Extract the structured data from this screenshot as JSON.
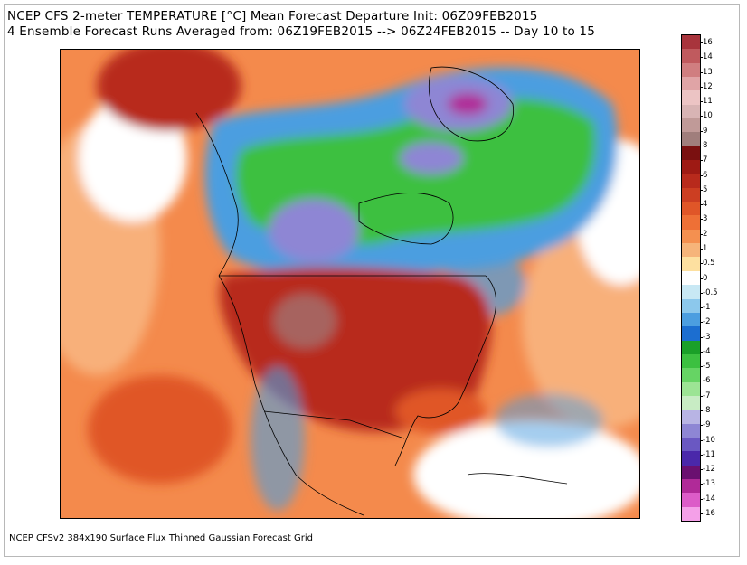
{
  "header": {
    "line1": "NCEP CFS 2-meter TEMPERATURE [°C] Mean Forecast Departure Init: 06Z09FEB2015",
    "line2": "4 Ensemble Forecast Runs Averaged from: 06Z19FEB2015 --> 06Z24FEB2015 -- Day 10 to 15"
  },
  "footer": {
    "text": "NCEP CFSv2 384x190 Surface Flux Thinned Gaussian Forecast Grid"
  },
  "colorbar": {
    "labels": [
      "16",
      "14",
      "13",
      "12",
      "11",
      "10",
      "9",
      "8",
      "7",
      "6",
      "5",
      "4",
      "3",
      "2",
      "1",
      "0.5",
      "0",
      "-0.5",
      "-1",
      "-2",
      "-3",
      "-4",
      "-5",
      "-6",
      "-7",
      "-8",
      "-9",
      "-10",
      "-11",
      "-12",
      "-13",
      "-14",
      "-16"
    ],
    "colors": [
      "#a8343c",
      "#c05a5e",
      "#d07e80",
      "#e0a4a6",
      "#ecc4c4",
      "#d8b4b4",
      "#c09a98",
      "#a07e7c",
      "#7a1010",
      "#9e1a14",
      "#b82a1c",
      "#cc3e22",
      "#e05628",
      "#ee7036",
      "#f49050",
      "#f6b47a",
      "#fde0a0",
      "#ffffff",
      "#c8e8f4",
      "#8cc8ec",
      "#4c9ee0",
      "#1c6ed0",
      "#1aa028",
      "#3cc040",
      "#66d464",
      "#9ce494",
      "#c8ecc4",
      "#b8b4e4",
      "#8e86d4",
      "#6a58c2",
      "#4a28aa",
      "#6a1070",
      "#b02a98",
      "#dc5cc8",
      "#f4a0e8"
    ],
    "color_names": [
      "dark-red",
      "rose",
      "pink",
      "light-pink",
      "blush",
      "mauve",
      "dusty-rose",
      "taupe",
      "maroon",
      "crimson",
      "brick",
      "red",
      "red-orange",
      "orange-red",
      "orange",
      "light-orange",
      "pale-yellow",
      "white",
      "pale-blue",
      "light-blue",
      "medium-blue",
      "blue",
      "dark-green",
      "green",
      "light-green",
      "pale-green",
      "mint",
      "lavender",
      "periwinkle",
      "violet",
      "indigo",
      "plum",
      "magenta",
      "orchid",
      "light-magenta"
    ]
  },
  "map": {
    "colors": {
      "ocean_warm": "#f48a4c",
      "ocean_mild": "#f8b07a",
      "land_hot": "#b82a1c",
      "land_warm": "#e05628",
      "cold_green": "#3cc040",
      "cold_blue": "#4c9ee0",
      "cold_purple": "#8e86d4",
      "cold_magenta": "#b02a98",
      "anomaly_gray": "#a07e7c",
      "neutral_white": "#ffffff"
    }
  }
}
